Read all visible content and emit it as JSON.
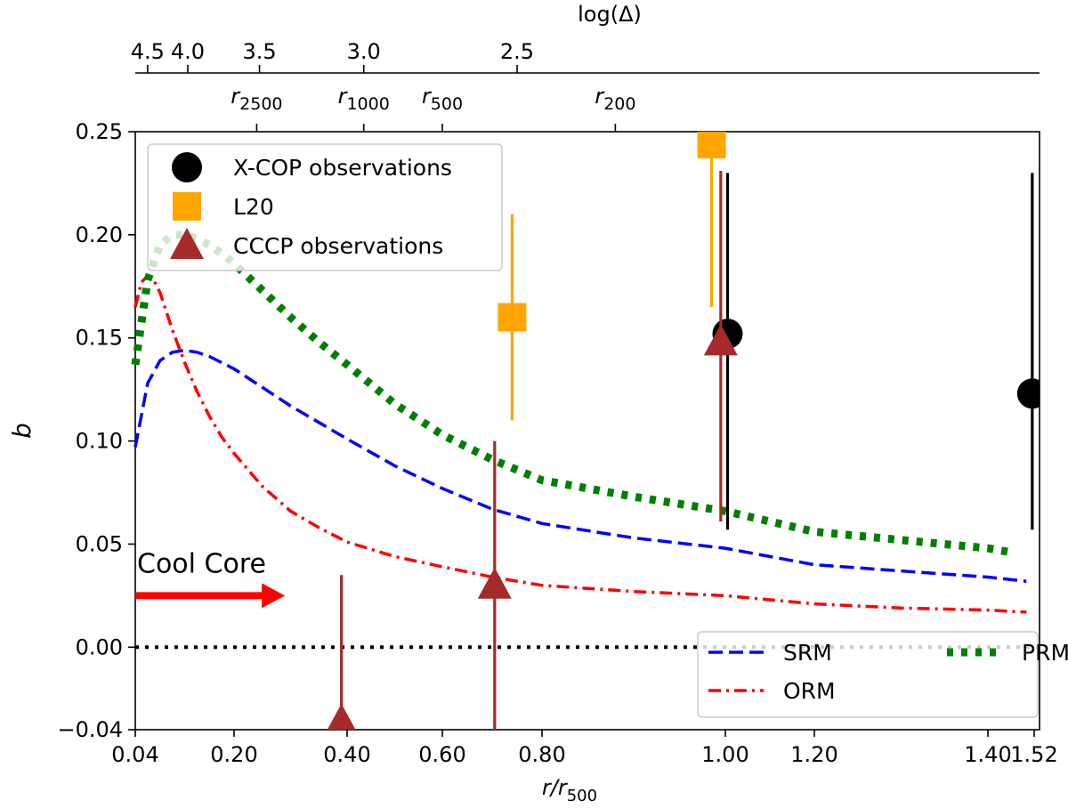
{
  "chart_data": {
    "type": "line",
    "xlabel": "r/r",
    "xlabel_sub": "500",
    "ylabel": "b",
    "xlim": [
      0.04,
      1.52
    ],
    "ylim": [
      -0.04,
      0.25
    ],
    "x_ticks": [
      {
        "value": 0.04,
        "label": "0.04"
      },
      {
        "value": 0.2,
        "label": "0.20"
      },
      {
        "value": 0.4,
        "label": "0.40"
      },
      {
        "value": 0.6,
        "label": "0.60"
      },
      {
        "value": 0.8,
        "label": "0.80"
      },
      {
        "value": 1.0,
        "label": "1.00"
      },
      {
        "value": 1.2,
        "label": "1.20"
      },
      {
        "value": 1.4,
        "label": "1.40"
      },
      {
        "value": 1.52,
        "label": "1.52"
      }
    ],
    "y_ticks": [
      {
        "value": -0.04,
        "label": "−0.04"
      },
      {
        "value": 0.0,
        "label": "0.00"
      },
      {
        "value": 0.05,
        "label": "0.05"
      },
      {
        "value": 0.1,
        "label": "0.10"
      },
      {
        "value": 0.15,
        "label": "0.15"
      },
      {
        "value": 0.2,
        "label": "0.20"
      },
      {
        "value": 0.25,
        "label": "0.25"
      }
    ],
    "top_axis": {
      "label": "log(Δ)",
      "ticks": [
        {
          "x": 0.06,
          "label": "4.5"
        },
        {
          "x": 0.125,
          "label": "4.0"
        },
        {
          "x": 0.245,
          "label": "3.5"
        },
        {
          "x": 0.435,
          "label": "3.0"
        },
        {
          "x": 0.75,
          "label": "2.5"
        }
      ]
    },
    "radius_markers": [
      {
        "x": 0.24,
        "label": "r",
        "sub": "2500"
      },
      {
        "x": 0.435,
        "label": "r",
        "sub": "1000"
      },
      {
        "x": 0.6,
        "label": "r",
        "sub": "500"
      },
      {
        "x": 0.88,
        "label": "r",
        "sub": "200"
      }
    ],
    "series": [
      {
        "name": "SRM",
        "style": "dashed",
        "color": "#0000ff",
        "x": [
          0.04,
          0.06,
          0.08,
          0.1,
          0.12,
          0.14,
          0.16,
          0.18,
          0.2,
          0.25,
          0.3,
          0.35,
          0.4,
          0.5,
          0.6,
          0.7,
          0.8,
          0.9,
          1.0,
          1.1,
          1.2,
          1.3,
          1.4,
          1.5
        ],
        "y": [
          0.097,
          0.128,
          0.139,
          0.143,
          0.144,
          0.143,
          0.141,
          0.138,
          0.135,
          0.126,
          0.117,
          0.109,
          0.101,
          0.088,
          0.077,
          0.067,
          0.06,
          0.053,
          0.048,
          0.044,
          0.04,
          0.037,
          0.034,
          0.032
        ]
      },
      {
        "name": "ORM",
        "style": "dashdot",
        "color": "#ff0000",
        "x": [
          0.04,
          0.05,
          0.06,
          0.07,
          0.08,
          0.09,
          0.1,
          0.12,
          0.14,
          0.16,
          0.18,
          0.2,
          0.25,
          0.3,
          0.35,
          0.4,
          0.5,
          0.6,
          0.7,
          0.8,
          0.9,
          1.0,
          1.1,
          1.2,
          1.3,
          1.4,
          1.5
        ],
        "y": [
          0.165,
          0.177,
          0.18,
          0.178,
          0.172,
          0.163,
          0.154,
          0.138,
          0.124,
          0.112,
          0.102,
          0.094,
          0.078,
          0.066,
          0.058,
          0.051,
          0.044,
          0.039,
          0.034,
          0.03,
          0.027,
          0.025,
          0.023,
          0.021,
          0.019,
          0.018,
          0.017
        ]
      },
      {
        "name": "PRM",
        "style": "dotted",
        "color": "#007f00",
        "x": [
          0.04,
          0.06,
          0.08,
          0.1,
          0.12,
          0.14,
          0.16,
          0.18,
          0.2,
          0.25,
          0.3,
          0.35,
          0.4,
          0.5,
          0.6,
          0.7,
          0.8,
          0.9,
          1.0,
          1.1,
          1.2,
          1.3,
          1.4,
          1.46
        ],
        "y": [
          0.137,
          0.178,
          0.195,
          0.2,
          0.2,
          0.198,
          0.195,
          0.191,
          0.186,
          0.173,
          0.16,
          0.148,
          0.137,
          0.118,
          0.103,
          0.091,
          0.081,
          0.073,
          0.066,
          0.061,
          0.056,
          0.052,
          0.048,
          0.046
        ]
      }
    ],
    "points": [
      {
        "series": "X-COP observations",
        "marker": "circle",
        "color": "#000000",
        "x": 1.005,
        "y": 0.152,
        "yerr_low": 0.057,
        "yerr_high": 0.23
      },
      {
        "series": "X-COP observations",
        "marker": "circle",
        "color": "#000000",
        "x": 1.515,
        "y": 0.123,
        "yerr_low": 0.057,
        "yerr_high": 0.23
      },
      {
        "series": "L20",
        "marker": "square",
        "color": "#ffa500",
        "x": 0.74,
        "y": 0.16,
        "yerr_low": 0.11,
        "yerr_high": 0.21
      },
      {
        "series": "L20",
        "marker": "square",
        "color": "#ffa500",
        "x": 0.985,
        "y": 0.244,
        "yerr_low": 0.165,
        "yerr_high": 0.25
      },
      {
        "series": "CCCP observations",
        "marker": "triangle",
        "color": "#a52a2a",
        "x": 0.39,
        "y": -0.036,
        "yerr_low": -0.04,
        "yerr_high": 0.035
      },
      {
        "series": "CCCP observations",
        "marker": "triangle",
        "color": "#a52a2a",
        "x": 0.705,
        "y": 0.03,
        "yerr_low": -0.04,
        "yerr_high": 0.1
      },
      {
        "series": "CCCP observations",
        "marker": "triangle",
        "color": "#a52a2a",
        "x": 0.995,
        "y": 0.148,
        "yerr_low": 0.061,
        "yerr_high": 0.231
      }
    ],
    "legend_top": {
      "position": "top-left",
      "entries": [
        {
          "label": "X-COP observations",
          "marker": "circle",
          "color": "#000000"
        },
        {
          "label": "L20",
          "marker": "square",
          "color": "#ffa500"
        },
        {
          "label": "CCCP observations",
          "marker": "triangle",
          "color": "#a52a2a"
        }
      ]
    },
    "legend_bottom": {
      "position": "bottom-right",
      "entries": [
        {
          "label": "SRM",
          "style": "dashed",
          "color": "#0000ff"
        },
        {
          "label": "PRM",
          "style": "dotted",
          "color": "#007f00"
        },
        {
          "label": "ORM",
          "style": "dashdot",
          "color": "#ff0000"
        }
      ]
    },
    "annotation": {
      "text": "Cool Core",
      "color": "#ff0000",
      "arrow_from_x": 0.04,
      "arrow_to_x": 0.29,
      "y": 0.025
    },
    "zero_line": {
      "y": 0.0,
      "style": "dotted",
      "color": "#000000"
    }
  }
}
